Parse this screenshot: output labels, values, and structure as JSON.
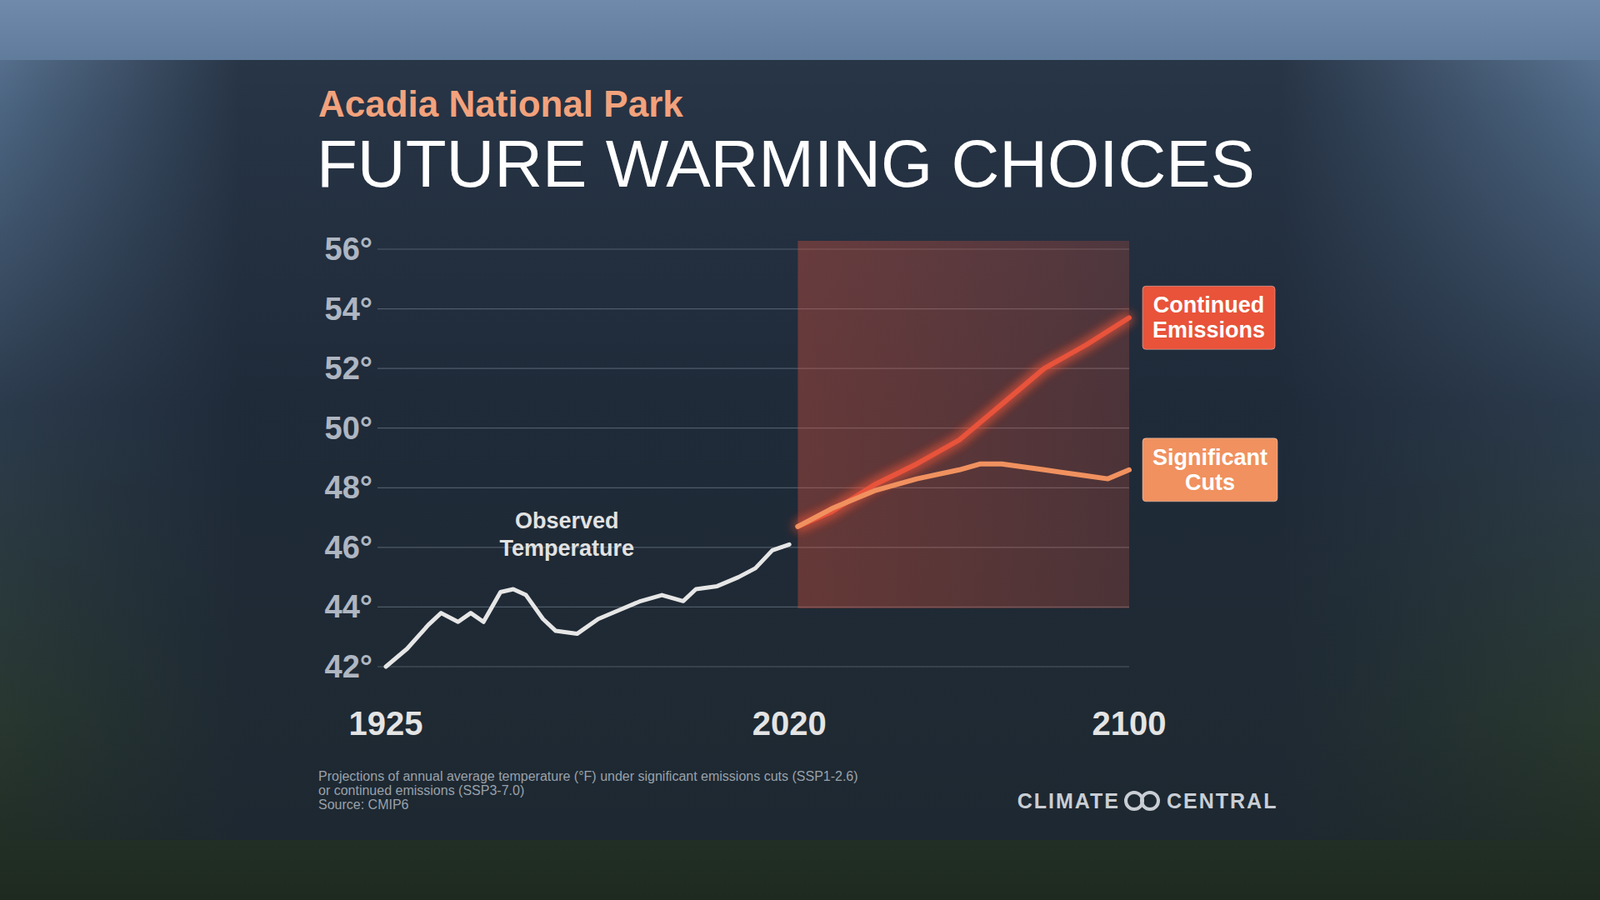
{
  "chart_data": {
    "type": "line",
    "subtitle": "Acadia National Park",
    "title": "FUTURE WARMING CHOICES",
    "grid": true,
    "xlim": [
      1925,
      2100
    ],
    "xticks": [
      1925,
      2020,
      2100
    ],
    "ylim": [
      42,
      56
    ],
    "yticks": [
      {
        "value": 42,
        "label": "42°"
      },
      {
        "value": 44,
        "label": "44°"
      },
      {
        "value": 46,
        "label": "46°"
      },
      {
        "value": 48,
        "label": "48°"
      },
      {
        "value": 50,
        "label": "50°"
      },
      {
        "value": 52,
        "label": "52°"
      },
      {
        "value": 54,
        "label": "54°"
      },
      {
        "value": 56,
        "label": "56°"
      }
    ],
    "series": [
      {
        "name": "Observed Temperature",
        "color": "#e6e6e6",
        "x": [
          1925,
          1930,
          1935,
          1938,
          1942,
          1945,
          1948,
          1952,
          1955,
          1958,
          1962,
          1965,
          1970,
          1975,
          1980,
          1985,
          1990,
          1995,
          1998,
          2003,
          2008,
          2012,
          2016,
          2020
        ],
        "values": [
          42.0,
          42.6,
          43.4,
          43.8,
          43.5,
          43.8,
          43.5,
          44.5,
          44.6,
          44.4,
          43.6,
          43.2,
          43.1,
          43.6,
          43.9,
          44.2,
          44.4,
          44.2,
          44.6,
          44.7,
          45.0,
          45.3,
          45.9,
          46.1
        ]
      },
      {
        "name": "Continued Emissions",
        "color": "#e8533a",
        "x": [
          2022,
          2030,
          2040,
          2050,
          2060,
          2070,
          2080,
          2090,
          2100
        ],
        "values": [
          46.7,
          47.2,
          48.1,
          48.8,
          49.6,
          50.8,
          52.0,
          52.8,
          53.7
        ]
      },
      {
        "name": "Significant Cuts",
        "color": "#f0915f",
        "x": [
          2022,
          2030,
          2040,
          2050,
          2060,
          2065,
          2070,
          2080,
          2090,
          2095,
          2100
        ],
        "values": [
          46.7,
          47.3,
          47.9,
          48.3,
          48.6,
          48.8,
          48.8,
          48.6,
          48.4,
          48.3,
          48.6
        ]
      }
    ],
    "notes": [
      "Projections of annual average temperature (°F) under significant emissions cuts (SSP1-2.6)",
      "or continued emissions (SSP3-7.0)",
      "Source: CMIP6"
    ],
    "brand": {
      "left": "CLIMATE",
      "right": "CENTRAL"
    }
  }
}
